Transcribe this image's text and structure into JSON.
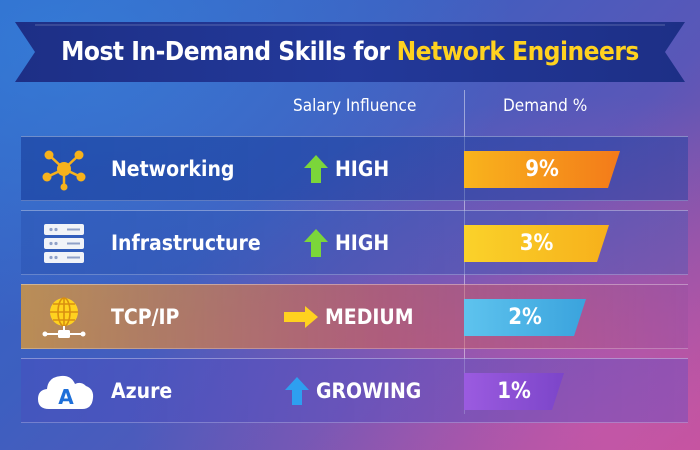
{
  "title": {
    "part1": "Most In-Demand Skills for",
    "highlight": "Network Engineers"
  },
  "columns": {
    "salary": "Salary Influence",
    "demand": "Demand %"
  },
  "rows": [
    {
      "skill": "Networking",
      "icon": "network-nodes-icon",
      "influence": "HIGH",
      "arrow": "up-arrow-icon",
      "arrow_color": "#7bd63a",
      "demand": "9%",
      "demand_value": 9,
      "bar_color": "#f6a21a"
    },
    {
      "skill": "Infrastructure",
      "icon": "server-stack-icon",
      "influence": "HIGH",
      "arrow": "up-arrow-icon",
      "arrow_color": "#7bd63a",
      "demand": "3%",
      "demand_value": 3,
      "bar_color": "#f9c21f"
    },
    {
      "skill": "TCP/IP",
      "icon": "globe-network-icon",
      "influence": "MEDIUM",
      "arrow": "right-arrow-icon",
      "arrow_color": "#ffd21f",
      "demand": "2%",
      "demand_value": 2,
      "bar_color": "#4db3e6"
    },
    {
      "skill": "Azure",
      "icon": "azure-cloud-icon",
      "influence": "GROWING",
      "arrow": "up-arrow-icon",
      "arrow_color": "#2e9ff0",
      "demand": "1%",
      "demand_value": 1,
      "bar_color": "#8a4fd1"
    }
  ]
}
